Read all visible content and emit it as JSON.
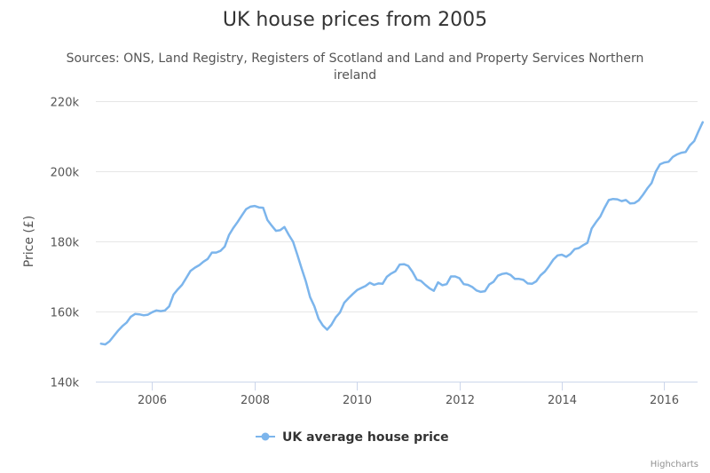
{
  "chart_data": {
    "type": "line",
    "title": "UK house prices from 2005",
    "subtitle_lines": [
      "Sources: ONS, Land Registry, Registers of Scotland and Land and Property Services Northern",
      "ireland"
    ],
    "xlabel": "",
    "ylabel": "Price (£)",
    "x_start": "2005-01",
    "x_interval": "monthly",
    "xlim": [
      2004.9,
      2016.65
    ],
    "ylim": [
      140000,
      220000
    ],
    "y_ticks": [
      140000,
      160000,
      180000,
      200000,
      220000
    ],
    "y_tick_labels": [
      "140k",
      "160k",
      "180k",
      "200k",
      "220k"
    ],
    "x_ticks": [
      2006,
      2008,
      2010,
      2012,
      2014,
      2016
    ],
    "x_tick_labels": [
      "2006",
      "2008",
      "2010",
      "2012",
      "2014",
      "2016"
    ],
    "grid": true,
    "legend": "bottom-center",
    "series": [
      {
        "name": "UK average house price",
        "color": "#7cb5ec",
        "values": [
          150800,
          150600,
          151500,
          153000,
          154500,
          155800,
          156800,
          158500,
          159300,
          159200,
          158900,
          159100,
          159800,
          160300,
          160100,
          160300,
          161500,
          164800,
          166300,
          167600,
          169600,
          171600,
          172500,
          173200,
          174200,
          175000,
          176800,
          176800,
          177300,
          178500,
          181800,
          183800,
          185500,
          187400,
          189200,
          189900,
          190100,
          189700,
          189600,
          186100,
          184500,
          183000,
          183200,
          184100,
          181900,
          179900,
          176200,
          172300,
          168600,
          164100,
          161500,
          157900,
          156000,
          154800,
          156200,
          158300,
          159700,
          162500,
          163800,
          165000,
          166100,
          166700,
          167300,
          168200,
          167600,
          168000,
          167900,
          169900,
          170800,
          171500,
          173400,
          173500,
          173000,
          171300,
          169100,
          168700,
          167600,
          166600,
          165900,
          168300,
          167500,
          167800,
          170000,
          170000,
          169500,
          167800,
          167600,
          167000,
          166000,
          165600,
          165800,
          167700,
          168500,
          170200,
          170700,
          170900,
          170400,
          169300,
          169300,
          169000,
          168000,
          167900,
          168600,
          170300,
          171400,
          173000,
          174800,
          176000,
          176200,
          175600,
          176400,
          177800,
          178100,
          178900,
          179600,
          183700,
          185500,
          187100,
          189600,
          191800,
          192100,
          192000,
          191500,
          191800,
          190800,
          190900,
          191700,
          193300,
          195100,
          196600,
          199900,
          202000,
          202500,
          202700,
          204100,
          204800,
          205300,
          205500,
          207400,
          208600,
          211400,
          214000
        ]
      }
    ]
  },
  "credits": "Highcharts"
}
